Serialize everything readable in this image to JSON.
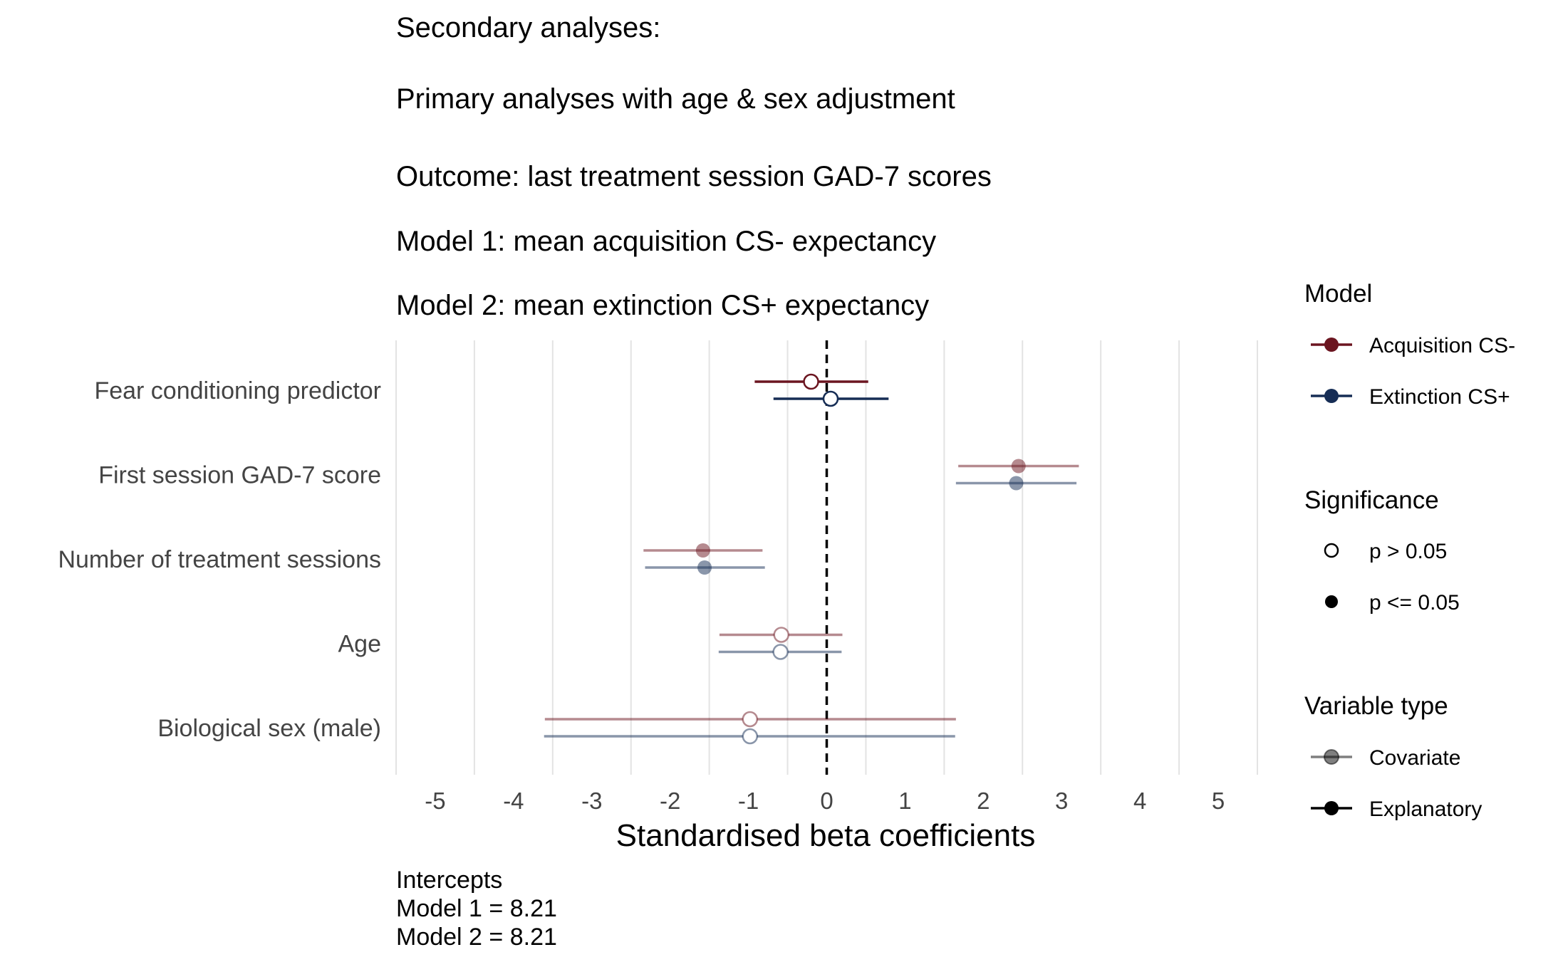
{
  "title_lines": [
    "Secondary analyses:",
    "Primary analyses with age & sex adjustment",
    "Outcome: last treatment session GAD-7 scores",
    "Model 1: mean acquisition CS- expectancy",
    "Model 2: mean extinction CS+ expectancy"
  ],
  "caption_lines": [
    "Intercepts",
    "Model 1 = 8.21",
    "Model 2 = 8.21"
  ],
  "colors": {
    "acquisition": "#6b1520",
    "extinction": "#162d55",
    "gridline": "#e3e3e3",
    "reference_line": "#000000"
  },
  "legend": {
    "model": {
      "title": "Model",
      "items": [
        {
          "label": "Acquisition CS-",
          "color": "#6b1520"
        },
        {
          "label": "Extinction CS+",
          "color": "#162d55"
        }
      ]
    },
    "significance": {
      "title": "Significance",
      "items": [
        {
          "label": "p > 0.05",
          "marker": "open-circle"
        },
        {
          "label": "p <= 0.05",
          "marker": "filled-circle"
        }
      ]
    },
    "variable_type": {
      "title": "Variable type",
      "items": [
        {
          "label": "Covariate",
          "alpha": 0.5
        },
        {
          "label": "Explanatory",
          "alpha": 1.0
        }
      ]
    }
  },
  "chart_data": {
    "type": "forest",
    "xlabel": "Standardised beta coefficients",
    "xlim": [
      -5.5,
      5.5
    ],
    "xticks": [
      -5,
      -4,
      -3,
      -2,
      -1,
      0,
      1,
      2,
      3,
      4,
      5
    ],
    "x_tick_labels": [
      "-5",
      "-4",
      "-3",
      "-2",
      "-1",
      "0",
      "1",
      "2",
      "3",
      "4",
      "5"
    ],
    "reference_line": 0,
    "grid": "vertical",
    "legend_position": "right",
    "categories": [
      "Fear conditioning predictor",
      "First session GAD-7 score",
      "Number of treatment sessions",
      "Age",
      "Biological sex (male)"
    ],
    "series": [
      {
        "name": "Acquisition CS-",
        "color": "#6b1520",
        "points": [
          {
            "category": "Fear conditioning predictor",
            "estimate": -0.2,
            "ci_low": -0.92,
            "ci_high": 0.53,
            "significant": false,
            "variable_type": "Explanatory"
          },
          {
            "category": "First session GAD-7 score",
            "estimate": 2.45,
            "ci_low": 1.68,
            "ci_high": 3.22,
            "significant": true,
            "variable_type": "Covariate"
          },
          {
            "category": "Number of treatment sessions",
            "estimate": -1.58,
            "ci_low": -2.34,
            "ci_high": -0.82,
            "significant": true,
            "variable_type": "Covariate"
          },
          {
            "category": "Age",
            "estimate": -0.58,
            "ci_low": -1.37,
            "ci_high": 0.2,
            "significant": false,
            "variable_type": "Covariate"
          },
          {
            "category": "Biological sex (male)",
            "estimate": -0.98,
            "ci_low": -3.6,
            "ci_high": 1.65,
            "significant": false,
            "variable_type": "Covariate"
          }
        ]
      },
      {
        "name": "Extinction CS+",
        "color": "#162d55",
        "points": [
          {
            "category": "Fear conditioning predictor",
            "estimate": 0.05,
            "ci_low": -0.68,
            "ci_high": 0.79,
            "significant": false,
            "variable_type": "Explanatory"
          },
          {
            "category": "First session GAD-7 score",
            "estimate": 2.42,
            "ci_low": 1.65,
            "ci_high": 3.19,
            "significant": true,
            "variable_type": "Covariate"
          },
          {
            "category": "Number of treatment sessions",
            "estimate": -1.56,
            "ci_low": -2.32,
            "ci_high": -0.79,
            "significant": true,
            "variable_type": "Covariate"
          },
          {
            "category": "Age",
            "estimate": -0.59,
            "ci_low": -1.38,
            "ci_high": 0.19,
            "significant": false,
            "variable_type": "Covariate"
          },
          {
            "category": "Biological sex (male)",
            "estimate": -0.98,
            "ci_low": -3.61,
            "ci_high": 1.64,
            "significant": false,
            "variable_type": "Covariate"
          }
        ]
      }
    ]
  }
}
